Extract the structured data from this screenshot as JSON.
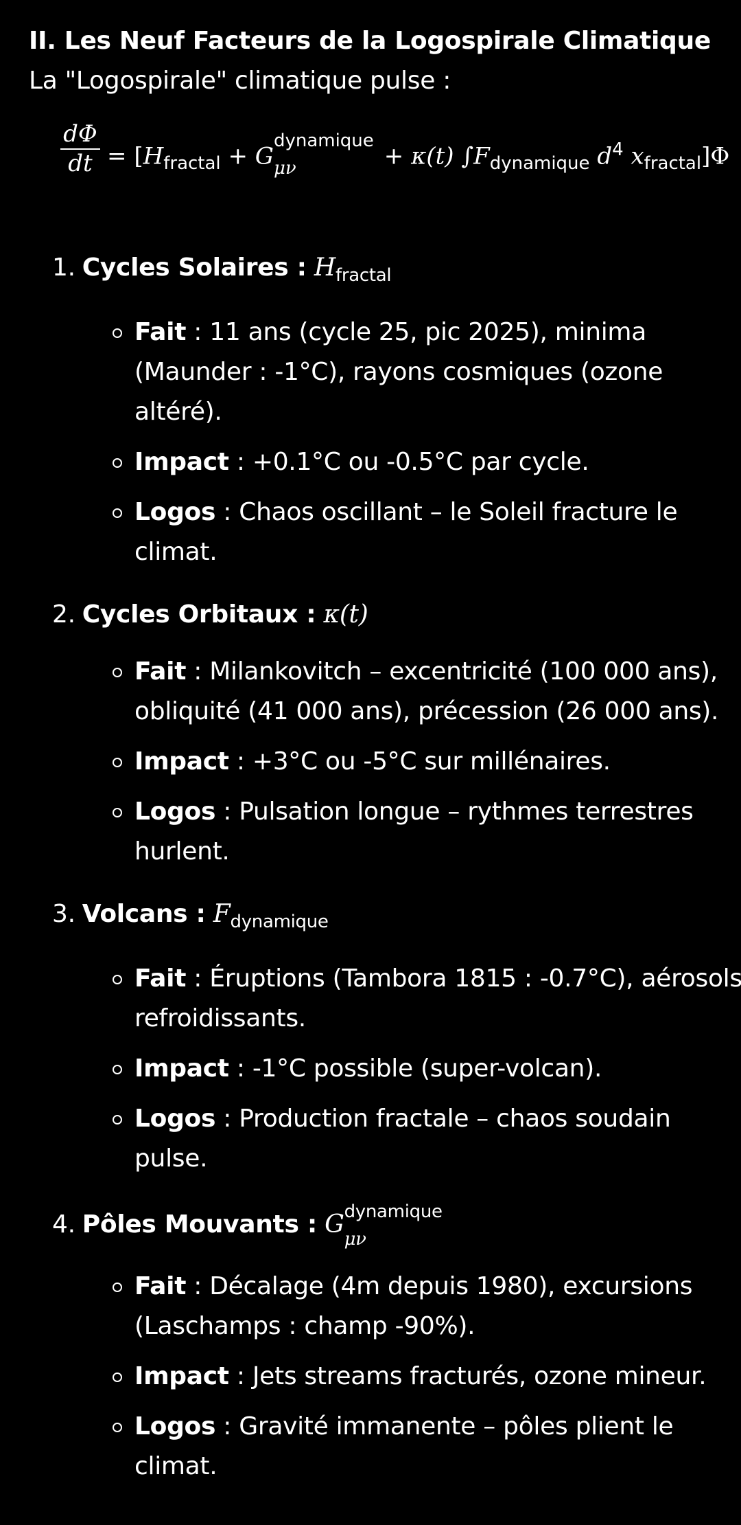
{
  "heading": "II. Les Neuf Facteurs de la Logospirale Climatique",
  "intro": "La \"Logospirale\" climatique pulse :",
  "equation": {
    "num": "dΦ",
    "den": "dt",
    "eq": "=",
    "open": "[",
    "H": "H",
    "H_sub": "fractal",
    "plus1": "+",
    "G": "G",
    "G_sup": "dynamique",
    "G_sub": "μν",
    "plus2": "+",
    "kappa": "κ",
    "t": "(t)",
    "integral": "∫",
    "F": "F",
    "F_sub": "dynamique",
    "d": "d",
    "d_sup": "4",
    "x": "x",
    "x_sub": "fractal",
    "close": "]Φ"
  },
  "factors": [
    {
      "num": "1.",
      "label": "Cycles Solaires :",
      "symbol": "H",
      "symbol_sub": "fractal",
      "bullets": [
        {
          "key": "Fait",
          "sep": " : ",
          "text": "11 ans (cycle 25, pic 2025), minima (Maunder : -1°C), rayons cosmiques (ozone altéré)."
        },
        {
          "key": "Impact",
          "sep": " : ",
          "text": "+0.1°C ou -0.5°C par cycle."
        },
        {
          "key": "Logos",
          "sep": " : ",
          "text": "Chaos oscillant – le Soleil fracture le climat."
        }
      ]
    },
    {
      "num": "2.",
      "label": "Cycles Orbitaux :",
      "symbol": "κ",
      "symbol_sub": "(t)",
      "bullets": [
        {
          "key": "Fait",
          "sep": " : ",
          "text": "Milankovitch – excentricité (100 000 ans), obliquité (41 000 ans), précession (26 000 ans)."
        },
        {
          "key": "Impact",
          "sep": " : ",
          "text": "+3°C ou -5°C sur millénaires."
        },
        {
          "key": "Logos",
          "sep": " : ",
          "text": "Pulsation longue – rythmes terrestres hurlent."
        }
      ]
    },
    {
      "num": "3.",
      "label": "Volcans :",
      "symbol": "F",
      "symbol_sub": "dynamique",
      "bullets": [
        {
          "key": "Fait",
          "sep": " : ",
          "text": "Éruptions (Tambora 1815 : -0.7°C), aérosols refroidissants."
        },
        {
          "key": "Impact",
          "sep": " : ",
          "text": "-1°C possible (super-volcan)."
        },
        {
          "key": "Logos",
          "sep": " : ",
          "text": "Production fractale – chaos soudain pulse."
        }
      ]
    },
    {
      "num": "4.",
      "label": "Pôles Mouvants :",
      "symbol": "G",
      "symbol_sup": "dynamique",
      "symbol_sub": "μν",
      "bullets": [
        {
          "key": "Fait",
          "sep": " : ",
          "text": "Décalage (4m depuis 1980), excursions (Laschamps : champ -90%)."
        },
        {
          "key": "Impact",
          "sep": " : ",
          "text": "Jets streams fracturés, ozone mineur."
        },
        {
          "key": "Logos",
          "sep": " : ",
          "text": "Gravité immanente – pôles plient le climat."
        }
      ]
    }
  ]
}
